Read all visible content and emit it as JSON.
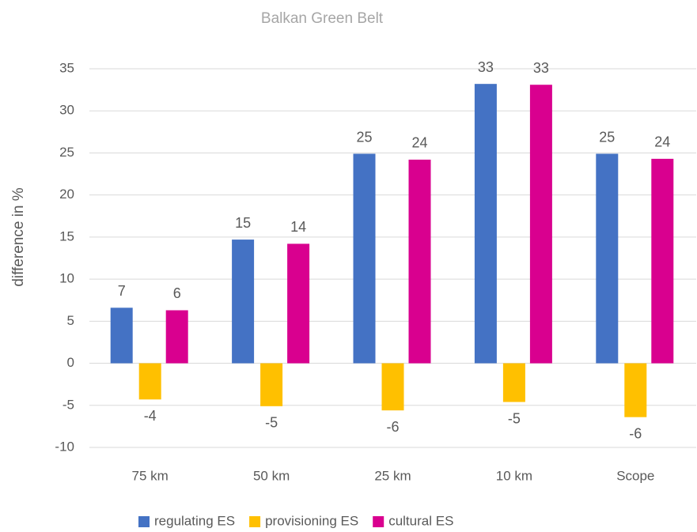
{
  "chart_data": {
    "type": "bar",
    "title": "Balkan Green Belt",
    "y_label": "difference in %",
    "categories": [
      "75 km",
      "50 km",
      "25 km",
      "10 km",
      "Scope"
    ],
    "series": [
      {
        "name": "regulating ES",
        "color": "#4472c4",
        "values": [
          6.6,
          14.7,
          24.9,
          33.2,
          24.9
        ],
        "value_labels": [
          "7",
          "15",
          "25",
          "33",
          "25"
        ]
      },
      {
        "name": "provisioning ES",
        "color": "#ffc000",
        "values": [
          -4.3,
          -5.1,
          -5.6,
          -4.6,
          -6.4
        ],
        "value_labels": [
          "-4",
          "-5",
          "-6",
          "-5",
          "-6"
        ]
      },
      {
        "name": "cultural ES",
        "color": "#d9008f",
        "values": [
          6.3,
          14.2,
          24.2,
          33.1,
          24.3
        ],
        "value_labels": [
          "6",
          "14",
          "24",
          "33",
          "24"
        ]
      }
    ],
    "ylim": [
      -10,
      35
    ],
    "yticks": [
      -10,
      -5,
      0,
      5,
      10,
      15,
      20,
      25,
      30,
      35
    ],
    "grid": true,
    "legend": "bottom"
  }
}
